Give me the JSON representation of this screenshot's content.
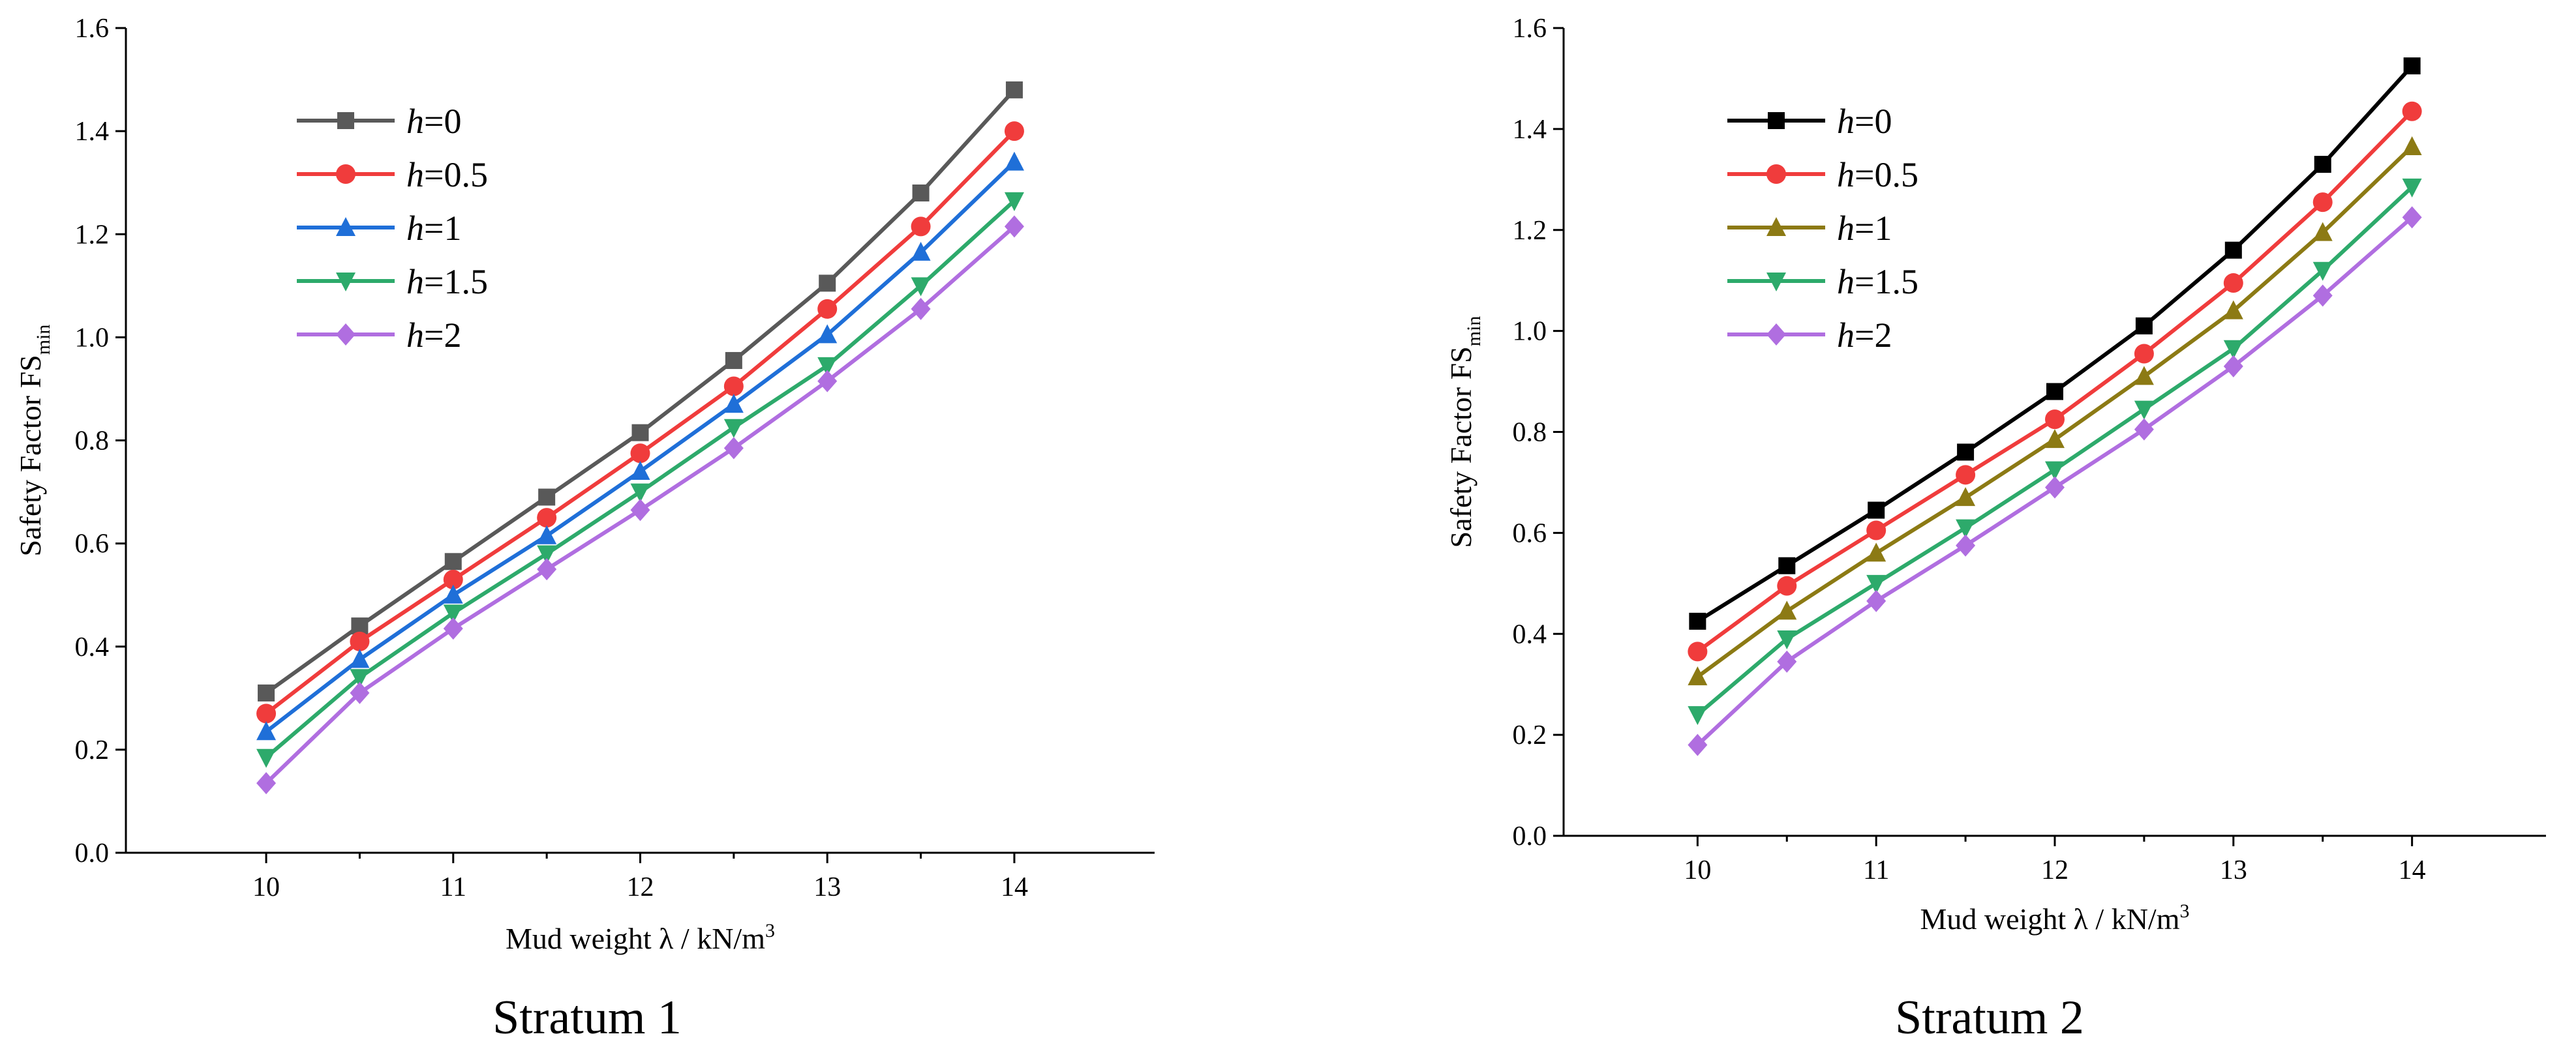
{
  "chart_data": [
    {
      "type": "line",
      "caption": "Stratum 1",
      "xlabel": "Mud weight λ / kN/m",
      "xlabel_sup": "3",
      "ylabel": "Safety Factor FS",
      "ylabel_sub": "min",
      "xlim": [
        9.25,
        14.75
      ],
      "ylim": [
        0,
        1.6
      ],
      "xticks": [
        "10",
        "11",
        "12",
        "13",
        "14"
      ],
      "yticks": [
        "0.0",
        "0.2",
        "0.4",
        "0.6",
        "0.8",
        "1.0",
        "1.2",
        "1.4",
        "1.6"
      ],
      "legend_position": "top-left",
      "x": [
        10,
        10.5,
        11,
        11.5,
        12,
        12.5,
        13,
        13.5,
        14
      ],
      "series": [
        {
          "name": "h",
          "value_label": "=0",
          "color": "#595959",
          "marker": "square",
          "values": [
            0.31,
            0.44,
            0.565,
            0.69,
            0.815,
            0.955,
            1.105,
            1.28,
            1.48
          ]
        },
        {
          "name": "h",
          "value_label": "=0.5",
          "color": "#f03c3c",
          "marker": "circle",
          "values": [
            0.27,
            0.41,
            0.53,
            0.65,
            0.775,
            0.905,
            1.055,
            1.215,
            1.4
          ]
        },
        {
          "name": "h",
          "value_label": "=1",
          "color": "#1f6fd8",
          "marker": "triangle-up",
          "values": [
            0.235,
            0.375,
            0.5,
            0.615,
            0.74,
            0.87,
            1.005,
            1.165,
            1.34
          ]
        },
        {
          "name": "h",
          "value_label": "=1.5",
          "color": "#2daa6b",
          "marker": "triangle-down",
          "values": [
            0.185,
            0.34,
            0.465,
            0.58,
            0.7,
            0.825,
            0.945,
            1.1,
            1.265
          ]
        },
        {
          "name": "h",
          "value_label": "=2",
          "color": "#b06ee0",
          "marker": "diamond",
          "values": [
            0.135,
            0.31,
            0.435,
            0.55,
            0.665,
            0.785,
            0.915,
            1.055,
            1.215
          ]
        }
      ]
    },
    {
      "type": "line",
      "caption": "Stratum 2",
      "xlabel": "Mud weight λ / kN/m",
      "xlabel_sup": "3",
      "ylabel": "Safety Factor FS",
      "ylabel_sub": "min",
      "xlim": [
        9.25,
        14.75
      ],
      "ylim": [
        0,
        1.6
      ],
      "xticks": [
        "10",
        "11",
        "12",
        "13",
        "14"
      ],
      "yticks": [
        "0.0",
        "0.2",
        "0.4",
        "0.6",
        "0.8",
        "1.0",
        "1.2",
        "1.4",
        "1.6"
      ],
      "legend_position": "top-left",
      "x": [
        10,
        10.5,
        11,
        11.5,
        12,
        12.5,
        13,
        13.5,
        14
      ],
      "series": [
        {
          "name": "h",
          "value_label": "=0",
          "color": "#000000",
          "marker": "square",
          "values": [
            0.425,
            0.535,
            0.645,
            0.76,
            0.88,
            1.01,
            1.16,
            1.33,
            1.525
          ]
        },
        {
          "name": "h",
          "value_label": "=0.5",
          "color": "#f03c3c",
          "marker": "circle",
          "values": [
            0.365,
            0.495,
            0.605,
            0.715,
            0.825,
            0.955,
            1.095,
            1.255,
            1.435
          ]
        },
        {
          "name": "h",
          "value_label": "=1",
          "color": "#8c7a14",
          "marker": "triangle-up",
          "values": [
            0.315,
            0.445,
            0.56,
            0.67,
            0.785,
            0.91,
            1.04,
            1.195,
            1.365
          ]
        },
        {
          "name": "h",
          "value_label": "=1.5",
          "color": "#2daa6b",
          "marker": "triangle-down",
          "values": [
            0.24,
            0.39,
            0.5,
            0.61,
            0.725,
            0.845,
            0.965,
            1.12,
            1.285
          ]
        },
        {
          "name": "h",
          "value_label": "=2",
          "color": "#b06ee0",
          "marker": "diamond",
          "values": [
            0.18,
            0.345,
            0.465,
            0.575,
            0.69,
            0.805,
            0.93,
            1.07,
            1.225
          ]
        }
      ]
    }
  ]
}
